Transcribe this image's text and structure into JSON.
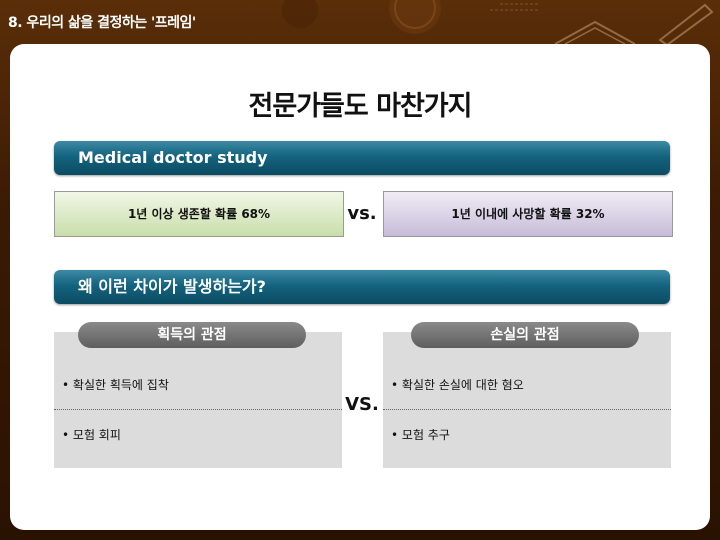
{
  "header": {
    "title": "8. 우리의 삶을 결정하는 '프레임'"
  },
  "slide": {
    "heading": "전문가들도 마찬가지",
    "section1": {
      "banner": "Medical doctor study",
      "left_box": "1년 이상 생존할 확률 68%",
      "vs": "vs.",
      "right_box": "1년 이내에 사망할 확률 32%"
    },
    "section2": {
      "banner": "왜 이런 차이가 발생하는가?",
      "left_panel": {
        "title": "획득의 관점",
        "items": [
          "확실한 획득에 집착",
          "모험 회피"
        ]
      },
      "vs": "VS.",
      "right_panel": {
        "title": "손실의 관점",
        "items": [
          "확실한 손실에 대한 혐오",
          "모험 추구"
        ]
      }
    }
  },
  "colors": {
    "banner": "#14637f",
    "green_box": "#c9deaa",
    "purple_box": "#c7bcd8",
    "pill": "#6e6e6e",
    "panel": "#dcdcdc",
    "background": "#3a1a04"
  },
  "icons": {
    "decor": [
      "book-icon",
      "pencil-icon",
      "clock-icon",
      "glasses-icon"
    ]
  }
}
